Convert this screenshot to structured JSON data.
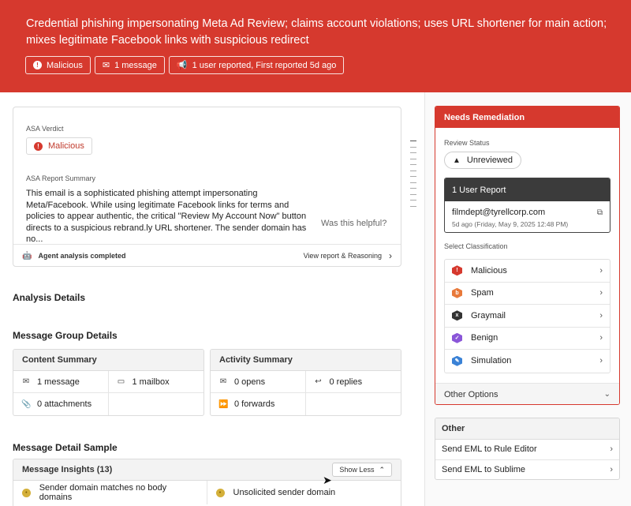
{
  "banner": {
    "title": "Credential phishing impersonating Meta Ad Review; claims account violations; uses URL shortener for main action; mixes legitimate Facebook links with suspicious redirect",
    "chips": [
      "Malicious",
      "1 message",
      "1 user reported, First reported 5d ago"
    ]
  },
  "verdict": {
    "label": "ASA Verdict",
    "value": "Malicious",
    "summary_label": "ASA Report Summary",
    "summary": "This email is a sophisticated phishing attempt impersonating Meta/Facebook. While using legitimate Facebook links for terms and policies to appear authentic, the critical \"Review My Account Now\" button directs to a suspicious rebrand.ly URL shortener. The sender domain has no...",
    "helpful": "Was this helpful?",
    "agent_status": "Agent analysis completed",
    "view_report": "View report & Reasoning"
  },
  "sections": {
    "analysis": "Analysis Details",
    "group": "Message Group Details",
    "sample": "Message Detail Sample"
  },
  "content_summary": {
    "title": "Content Summary",
    "cells": [
      "1 message",
      "1 mailbox",
      "0 attachments",
      ""
    ]
  },
  "activity_summary": {
    "title": "Activity Summary",
    "cells": [
      "0 opens",
      "0 replies",
      "0 forwards",
      ""
    ]
  },
  "insights": {
    "title": "Message Insights (13)",
    "toggle": "Show Less",
    "items": [
      "Sender domain matches no body domains",
      "Unsolicited sender domain"
    ]
  },
  "remediation": {
    "title": "Needs Remediation",
    "status_label": "Review Status",
    "status": "Unreviewed",
    "report_title": "1 User Report",
    "reporter": "filmdept@tyrellcorp.com",
    "report_date": "5d ago  (Friday, May 9, 2025 12:48 PM)",
    "classification_label": "Select Classification",
    "classifications": [
      {
        "label": "Malicious",
        "color": "#d6392e",
        "icon": "!"
      },
      {
        "label": "Spam",
        "color": "#e8793a",
        "icon": "b"
      },
      {
        "label": "Graymail",
        "color": "#333333",
        "icon": "x"
      },
      {
        "label": "Benign",
        "color": "#8a56d8",
        "icon": "✓"
      },
      {
        "label": "Simulation",
        "color": "#3a82d6",
        "icon": "✎"
      }
    ],
    "other_options": "Other Options"
  },
  "other": {
    "title": "Other",
    "items": [
      "Send EML to Rule Editor",
      "Send EML to Sublime"
    ]
  }
}
